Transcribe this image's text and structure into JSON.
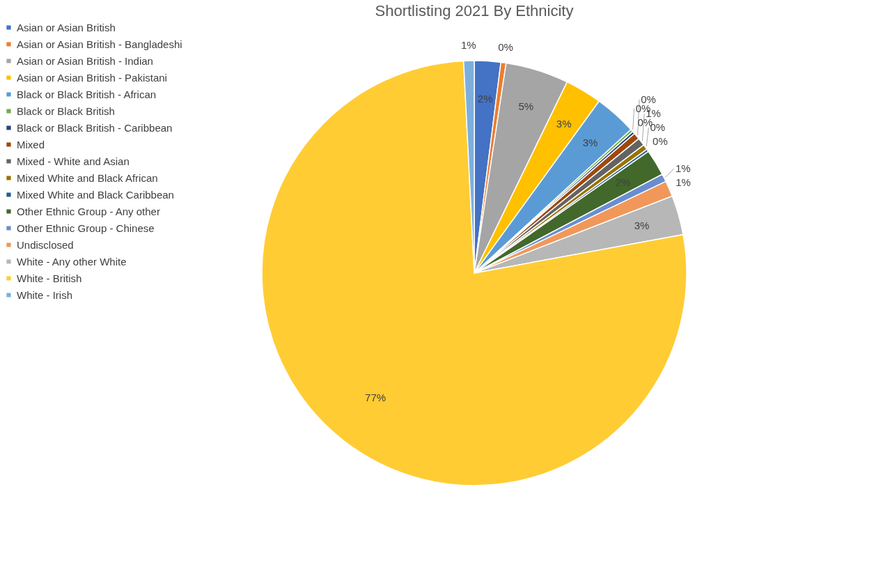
{
  "chart_data": {
    "type": "pie",
    "title": "Shortlisting 2021 By Ethnicity",
    "categories": [
      "Asian or Asian British",
      "Asian or Asian British - Bangladeshi",
      "Asian or Asian British - Indian",
      "Asian or Asian British - Pakistani",
      "Black or Black British - African",
      "Black or Black British",
      "Black or Black British - Caribbean",
      "Mixed",
      "Mixed - White and Asian",
      "Mixed White and Black African",
      "Mixed White and Black Caribbean",
      "Other Ethnic Group - Any other",
      "Other Ethnic Group - Chinese",
      "Undisclosed",
      "White - Any other White",
      "White - British",
      "White - Irish"
    ],
    "values": [
      2.0,
      0.4,
      4.8,
      2.8,
      3.2,
      0.2,
      0.2,
      0.5,
      0.6,
      0.4,
      0.2,
      2.0,
      0.6,
      1.2,
      3.0,
      77.1,
      0.8
    ],
    "value_labels": [
      "2%",
      "0%",
      "5%",
      "3%",
      "3%",
      "0%",
      "0%",
      "0%",
      "1%",
      "0%",
      "0%",
      "2%",
      "1%",
      "1%",
      "3%",
      "77%",
      "1%"
    ],
    "colors": [
      "#4472c4",
      "#ed7d31",
      "#a5a5a5",
      "#ffc000",
      "#5b9bd5",
      "#70ad47",
      "#264478",
      "#9e480e",
      "#636363",
      "#997300",
      "#255e91",
      "#43682b",
      "#698ed0",
      "#f1975a",
      "#b7b7b7",
      "#ffcc33",
      "#7cafdd"
    ],
    "legend": "left"
  }
}
